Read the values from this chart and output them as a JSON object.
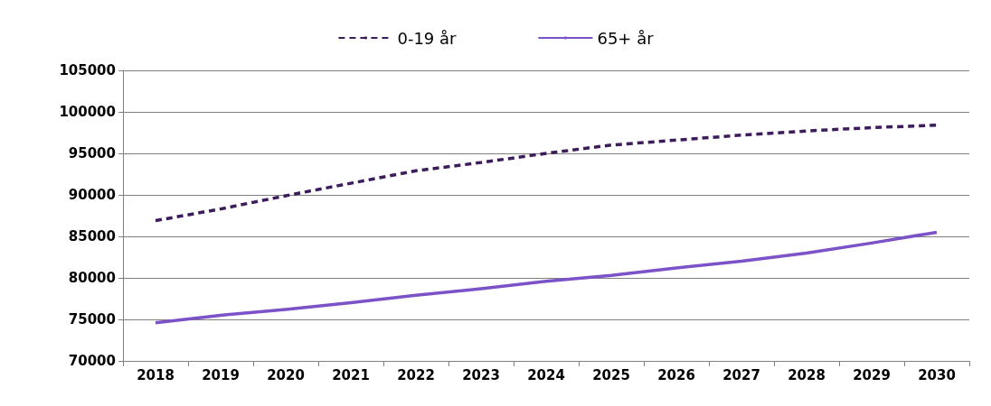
{
  "chart_data": {
    "type": "line",
    "categories": [
      "2018",
      "2019",
      "2020",
      "2021",
      "2022",
      "2023",
      "2024",
      "2025",
      "2026",
      "2027",
      "2028",
      "2029",
      "2030"
    ],
    "series": [
      {
        "name": "0-19 år",
        "color": "#3d1c5c",
        "line_style": "dashed",
        "values": [
          86900,
          88300,
          89900,
          91400,
          92900,
          93900,
          95000,
          96000,
          96600,
          97200,
          97700,
          98100,
          98400
        ]
      },
      {
        "name": "65+ år",
        "color": "#7b52c8",
        "line_style": "solid",
        "values": [
          74600,
          75500,
          76200,
          77000,
          77900,
          78700,
          79600,
          80300,
          81200,
          82000,
          83000,
          84200,
          85500
        ]
      }
    ],
    "ylim": [
      70000,
      105000
    ],
    "yticks": [
      70000,
      75000,
      80000,
      85000,
      90000,
      95000,
      100000,
      105000
    ],
    "grid": "y",
    "legend": "top",
    "marker": "none"
  }
}
